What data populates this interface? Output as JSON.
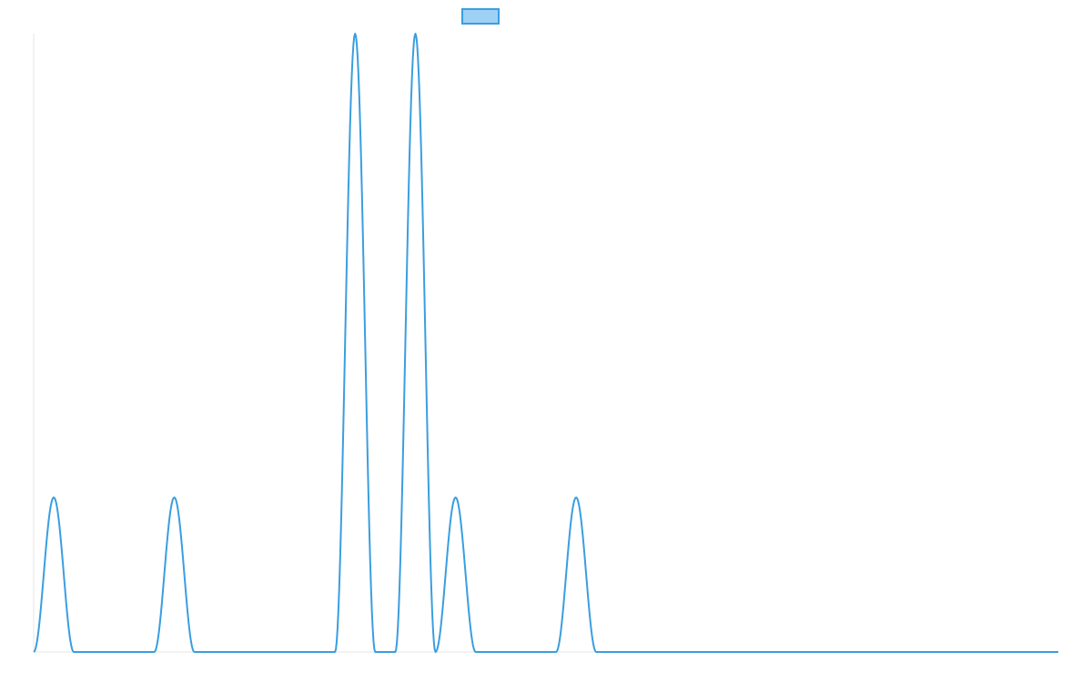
{
  "chart_data": {
    "type": "line",
    "title": "",
    "xlabel": "",
    "ylabel": "",
    "legend": {
      "placement": "top-center",
      "entries": [
        {
          "name": "",
          "color": "#3a9ee0",
          "fill": "#9fd1f5"
        }
      ]
    },
    "grid": false,
    "xlim": [
      0,
      51
    ],
    "ylim": [
      0,
      1
    ],
    "series": [
      {
        "name": "",
        "color": "#3a9ee0",
        "x": [
          0,
          1,
          2,
          3,
          4,
          5,
          6,
          7,
          8,
          9,
          10,
          11,
          12,
          13,
          14,
          15,
          16,
          17,
          18,
          19,
          20,
          21,
          22,
          23,
          24,
          25,
          26,
          27,
          28,
          29,
          30,
          31,
          32,
          33,
          34,
          35,
          36,
          37,
          38,
          39,
          40,
          41,
          42,
          43,
          44,
          45,
          46,
          47,
          48,
          49,
          50,
          51
        ],
        "y": [
          0,
          0.25,
          0,
          0,
          0,
          0,
          0,
          0.25,
          0,
          0,
          0,
          0,
          0,
          0,
          0,
          0,
          1,
          0,
          0,
          1,
          0,
          0.25,
          0,
          0,
          0,
          0,
          0,
          0.25,
          0,
          0,
          0,
          0,
          0,
          0,
          0,
          0,
          0,
          0,
          0,
          0,
          0,
          0,
          0,
          0,
          0,
          0,
          0,
          0,
          0,
          0,
          0,
          0
        ]
      }
    ]
  }
}
